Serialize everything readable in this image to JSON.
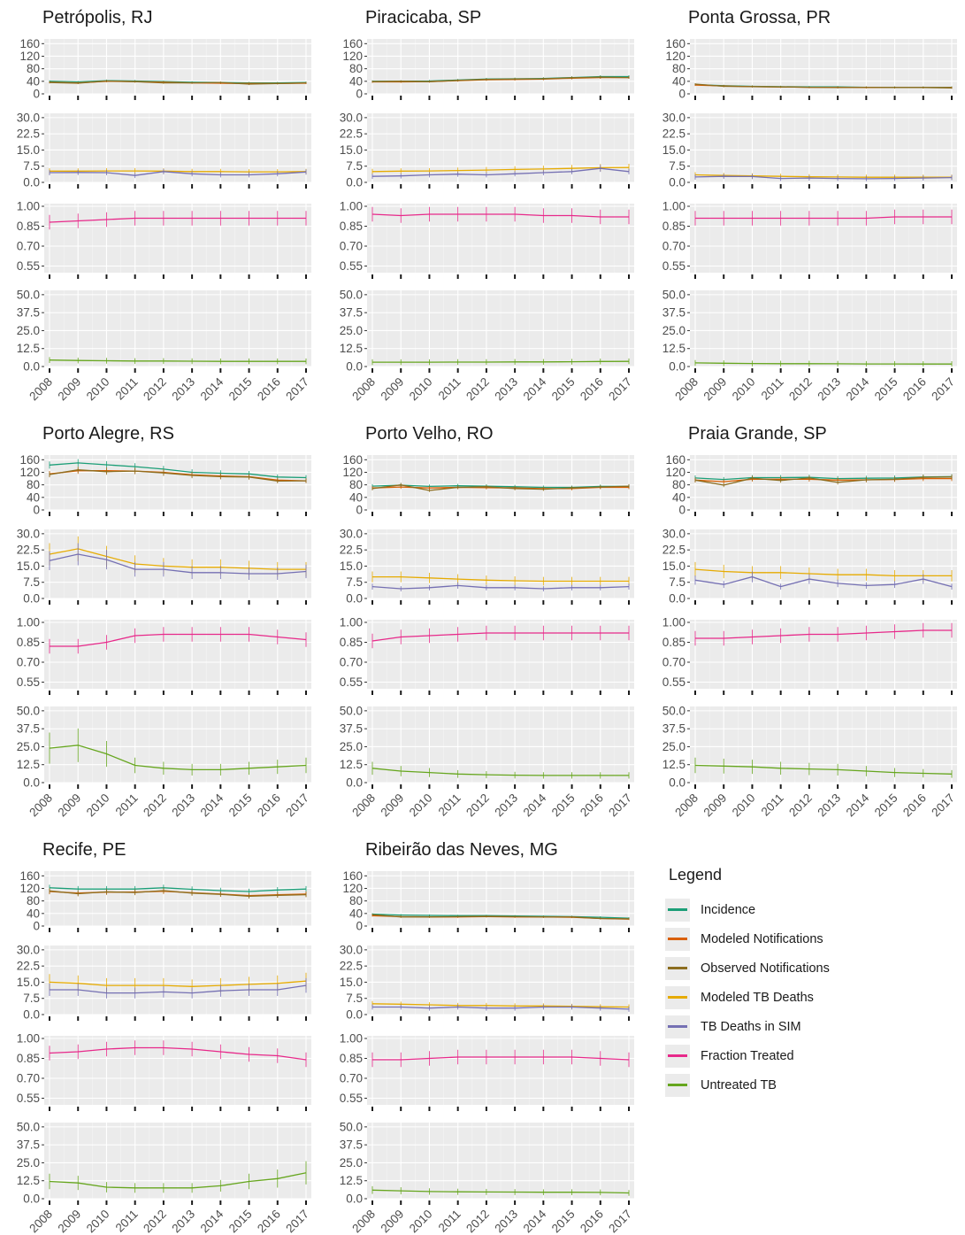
{
  "chart_data": {
    "type": "line",
    "x": [
      "2008",
      "2009",
      "2010",
      "2011",
      "2012",
      "2013",
      "2014",
      "2015",
      "2016",
      "2017"
    ],
    "panel_rows": [
      {
        "ticks": [
          "160",
          "120",
          "80",
          "40",
          "0"
        ],
        "ylim": [
          0,
          175
        ]
      },
      {
        "ticks": [
          "30.0",
          "22.5",
          "15.0",
          "7.5",
          "0.0"
        ],
        "ylim": [
          0,
          32
        ]
      },
      {
        "ticks": [
          "1.00",
          "0.85",
          "0.70",
          "0.55"
        ],
        "ylim": [
          0.5,
          1.02
        ]
      },
      {
        "ticks": [
          "50.0",
          "37.5",
          "25.0",
          "12.5",
          "0.0"
        ],
        "ylim": [
          0,
          53
        ]
      }
    ],
    "legend": {
      "title": "Legend",
      "items": [
        {
          "key": "incidence",
          "label": "Incidence",
          "color": "#1b9e77"
        },
        {
          "key": "modeled_notifications",
          "label": "Modeled Notifications",
          "color": "#d95f02"
        },
        {
          "key": "observed_notifications",
          "label": "Observed Notifications",
          "color": "#8c6d1f"
        },
        {
          "key": "modeled_tb_deaths",
          "label": "Modeled TB Deaths",
          "color": "#e6ab02"
        },
        {
          "key": "tb_deaths_sim",
          "label": "TB Deaths in SIM",
          "color": "#7570b3"
        },
        {
          "key": "fraction_treated",
          "label": "Fraction Treated",
          "color": "#e7298a"
        },
        {
          "key": "untreated_tb",
          "label": "Untreated TB",
          "color": "#66a61e"
        }
      ]
    },
    "cities": [
      {
        "title": "Petrópolis, RJ",
        "incidence": [
          40,
          38,
          42,
          41,
          39,
          37,
          36,
          35,
          35,
          36
        ],
        "modeled_notifications": [
          37,
          35,
          40,
          39,
          37,
          35,
          34,
          33,
          33,
          34
        ],
        "observed_notifications": [
          36,
          34,
          41,
          39,
          35,
          35,
          36,
          31,
          33,
          35
        ],
        "modeled_tb_deaths": [
          5.2,
          5.2,
          5.3,
          5.3,
          5.2,
          5.0,
          5.0,
          4.9,
          4.9,
          5.0
        ],
        "tb_deaths_sim": [
          4.5,
          4.6,
          4.5,
          3.2,
          5.0,
          4.0,
          3.5,
          3.5,
          4.0,
          4.8
        ],
        "fraction_treated": [
          0.88,
          0.89,
          0.9,
          0.91,
          0.91,
          0.91,
          0.91,
          0.91,
          0.91,
          0.91
        ],
        "untreated_tb": [
          4.5,
          4.2,
          4.0,
          3.8,
          3.8,
          3.7,
          3.6,
          3.6,
          3.6,
          3.6
        ]
      },
      {
        "title": "Piracicaba, SP",
        "incidence": [
          40,
          40,
          41,
          44,
          47,
          48,
          49,
          52,
          55,
          55
        ],
        "modeled_notifications": [
          38,
          38,
          39,
          42,
          45,
          46,
          47,
          50,
          52,
          52
        ],
        "observed_notifications": [
          39,
          40,
          39,
          43,
          46,
          47,
          48,
          51,
          53,
          52
        ],
        "modeled_tb_deaths": [
          5.0,
          5.2,
          5.3,
          5.5,
          5.7,
          6.0,
          6.2,
          6.5,
          6.8,
          6.9
        ],
        "tb_deaths_sim": [
          2.8,
          3.0,
          3.5,
          3.8,
          3.5,
          4.0,
          4.5,
          5.0,
          6.5,
          5.0
        ],
        "fraction_treated": [
          0.94,
          0.93,
          0.94,
          0.94,
          0.94,
          0.94,
          0.93,
          0.93,
          0.92,
          0.92
        ],
        "untreated_tb": [
          3.0,
          3.0,
          3.0,
          3.1,
          3.1,
          3.2,
          3.2,
          3.3,
          3.5,
          3.6
        ]
      },
      {
        "title": "Ponta Grossa, PR",
        "incidence": [
          29,
          26,
          24,
          23,
          22,
          22,
          21,
          21,
          21,
          21
        ],
        "modeled_notifications": [
          28,
          25,
          23,
          22,
          21,
          21,
          20,
          20,
          20,
          20
        ],
        "observed_notifications": [
          31,
          24,
          23,
          22,
          21,
          20,
          21,
          20,
          20,
          19
        ],
        "modeled_tb_deaths": [
          3.5,
          3.2,
          3.0,
          2.8,
          2.6,
          2.5,
          2.4,
          2.4,
          2.4,
          2.4
        ],
        "tb_deaths_sim": [
          2.5,
          2.8,
          2.7,
          1.8,
          2.0,
          1.8,
          1.7,
          1.8,
          2.0,
          2.2
        ],
        "fraction_treated": [
          0.91,
          0.91,
          0.91,
          0.91,
          0.91,
          0.91,
          0.91,
          0.92,
          0.92,
          0.92
        ],
        "untreated_tb": [
          2.5,
          2.3,
          2.1,
          2.0,
          2.0,
          1.9,
          1.8,
          1.8,
          1.7,
          1.7
        ]
      },
      {
        "title": "Porto Alegre, RS",
        "incidence": [
          143,
          150,
          144,
          138,
          130,
          120,
          117,
          115,
          105,
          103
        ],
        "modeled_notifications": [
          115,
          125,
          125,
          124,
          120,
          112,
          108,
          106,
          95,
          93
        ],
        "observed_notifications": [
          113,
          128,
          122,
          124,
          118,
          110,
          106,
          105,
          92,
          93
        ],
        "modeled_tb_deaths": [
          20.5,
          23.0,
          19.5,
          16.0,
          15.0,
          14.5,
          14.5,
          14.0,
          13.5,
          13.5
        ],
        "tb_deaths_sim": [
          17.5,
          20.5,
          18.0,
          13.5,
          13.5,
          12.0,
          12.0,
          11.5,
          11.5,
          12.5
        ],
        "fraction_treated": [
          0.82,
          0.82,
          0.85,
          0.9,
          0.91,
          0.91,
          0.91,
          0.91,
          0.89,
          0.87
        ],
        "untreated_tb": [
          24,
          26,
          20,
          12,
          10,
          9,
          9,
          10,
          11,
          12
        ]
      },
      {
        "title": "Porto Velho, RO",
        "incidence": [
          76,
          79,
          75,
          77,
          76,
          74,
          72,
          72,
          75,
          75
        ],
        "modeled_notifications": [
          70,
          73,
          70,
          72,
          71,
          70,
          68,
          68,
          72,
          72
        ],
        "observed_notifications": [
          68,
          80,
          62,
          72,
          74,
          68,
          66,
          70,
          73,
          76
        ],
        "modeled_tb_deaths": [
          10.0,
          10.0,
          9.5,
          9.0,
          8.5,
          8.2,
          8.0,
          8.0,
          8.0,
          8.0
        ],
        "tb_deaths_sim": [
          5.5,
          4.5,
          5.0,
          6.0,
          5.0,
          5.0,
          4.5,
          5.0,
          5.0,
          5.5
        ],
        "fraction_treated": [
          0.86,
          0.89,
          0.9,
          0.91,
          0.92,
          0.92,
          0.92,
          0.92,
          0.92,
          0.92
        ],
        "untreated_tb": [
          10,
          8,
          7,
          6,
          5.5,
          5.2,
          5,
          5,
          5,
          5
        ]
      },
      {
        "title": "Praia Grande, SP",
        "incidence": [
          102,
          97,
          103,
          103,
          104,
          100,
          101,
          102,
          105,
          106
        ],
        "modeled_notifications": [
          95,
          90,
          98,
          98,
          98,
          95,
          96,
          97,
          100,
          100
        ],
        "observed_notifications": [
          95,
          79,
          101,
          94,
          102,
          88,
          96,
          98,
          104,
          105
        ],
        "modeled_tb_deaths": [
          13.5,
          12.5,
          12.0,
          12.0,
          11.5,
          11.0,
          11.0,
          10.5,
          10.5,
          10.5
        ],
        "tb_deaths_sim": [
          8.5,
          6.5,
          10.0,
          5.5,
          9.0,
          7.0,
          6.0,
          6.5,
          9.0,
          5.5
        ],
        "fraction_treated": [
          0.88,
          0.88,
          0.89,
          0.9,
          0.91,
          0.91,
          0.92,
          0.93,
          0.94,
          0.94
        ],
        "untreated_tb": [
          12,
          11.5,
          11,
          10,
          9.5,
          9,
          8,
          7,
          6.5,
          6
        ]
      },
      {
        "title": "Recife, PE",
        "incidence": [
          122,
          118,
          118,
          118,
          122,
          117,
          113,
          110,
          115,
          118
        ],
        "modeled_notifications": [
          110,
          105,
          108,
          108,
          111,
          106,
          102,
          97,
          100,
          102
        ],
        "observed_notifications": [
          112,
          103,
          109,
          107,
          113,
          105,
          101,
          95,
          98,
          100
        ],
        "modeled_tb_deaths": [
          15.0,
          14.5,
          13.5,
          13.5,
          13.5,
          13.0,
          13.5,
          14.0,
          14.5,
          15.5
        ],
        "tb_deaths_sim": [
          11.5,
          11.5,
          10.0,
          10.0,
          10.5,
          10.0,
          11.0,
          11.5,
          11.5,
          13.5
        ],
        "fraction_treated": [
          0.89,
          0.9,
          0.92,
          0.93,
          0.93,
          0.92,
          0.9,
          0.88,
          0.87,
          0.84
        ],
        "untreated_tb": [
          12,
          11,
          8,
          7.5,
          7.5,
          7.5,
          9,
          12,
          14,
          18
        ]
      },
      {
        "title": "Ribeirão das Neves, MG",
        "incidence": [
          38,
          35,
          34,
          33,
          33,
          32,
          31,
          30,
          28,
          25
        ],
        "modeled_notifications": [
          33,
          30,
          29,
          29,
          30,
          29,
          29,
          28,
          24,
          22
        ],
        "observed_notifications": [
          36,
          29,
          29,
          30,
          31,
          30,
          29,
          29,
          24,
          23
        ],
        "modeled_tb_deaths": [
          5.0,
          4.8,
          4.5,
          4.2,
          4.2,
          4.0,
          4.0,
          3.8,
          3.6,
          3.5
        ],
        "tb_deaths_sim": [
          3.5,
          3.5,
          3.0,
          3.5,
          3.0,
          3.0,
          3.5,
          3.5,
          3.0,
          2.5
        ],
        "fraction_treated": [
          0.84,
          0.84,
          0.85,
          0.86,
          0.86,
          0.86,
          0.86,
          0.86,
          0.85,
          0.84
        ],
        "untreated_tb": [
          6,
          5.5,
          5,
          4.8,
          4.7,
          4.6,
          4.5,
          4.5,
          4.4,
          4.0
        ]
      }
    ]
  }
}
